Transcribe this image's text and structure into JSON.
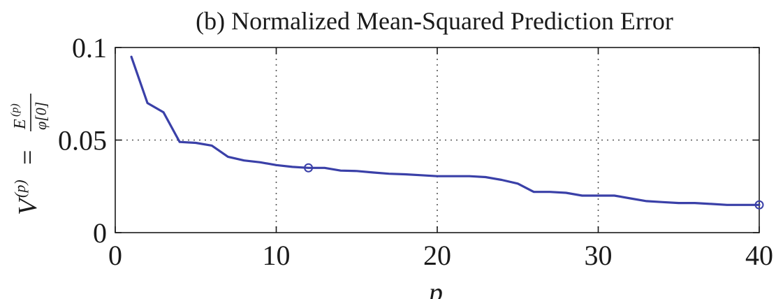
{
  "chart_data": {
    "type": "line",
    "title": "(b) Normalized Mean-Squared Prediction Error",
    "xlabel": "p",
    "ylabel": {
      "lhs": "V",
      "lhs_sup": "(p)",
      "eq": "=",
      "numerator": "E",
      "numerator_sup": "(p)",
      "denominator": "φ[0]"
    },
    "xlim": [
      0,
      40
    ],
    "ylim": [
      0,
      0.1
    ],
    "xticks": [
      0,
      10,
      20,
      30,
      40
    ],
    "xtick_labels": [
      "0",
      "10",
      "20",
      "30",
      "40"
    ],
    "yticks": [
      0,
      0.05,
      0.1
    ],
    "ytick_labels": [
      "0",
      "0.05",
      "0.1"
    ],
    "grid": true,
    "line_color": "#3a40a8",
    "series": [
      {
        "x": [
          1,
          2,
          3,
          4,
          5,
          6,
          7,
          8,
          9,
          10,
          11,
          12,
          13,
          14,
          15,
          16,
          17,
          18,
          19,
          20,
          21,
          22,
          23,
          24,
          25,
          26,
          27,
          28,
          29,
          30,
          31,
          32,
          33,
          34,
          35,
          36,
          37,
          38,
          39,
          40
        ],
        "y": [
          0.095,
          0.07,
          0.065,
          0.049,
          0.0485,
          0.047,
          0.041,
          0.039,
          0.038,
          0.0365,
          0.0355,
          0.035,
          0.035,
          0.0335,
          0.0333,
          0.0325,
          0.0318,
          0.0315,
          0.031,
          0.0305,
          0.0305,
          0.0305,
          0.03,
          0.0285,
          0.0265,
          0.022,
          0.022,
          0.0215,
          0.02,
          0.02,
          0.02,
          0.0185,
          0.017,
          0.0165,
          0.016,
          0.016,
          0.0155,
          0.015,
          0.015,
          0.015
        ]
      }
    ],
    "markers": [
      {
        "x": 12,
        "y": 0.035
      },
      {
        "x": 40,
        "y": 0.015
      }
    ]
  }
}
